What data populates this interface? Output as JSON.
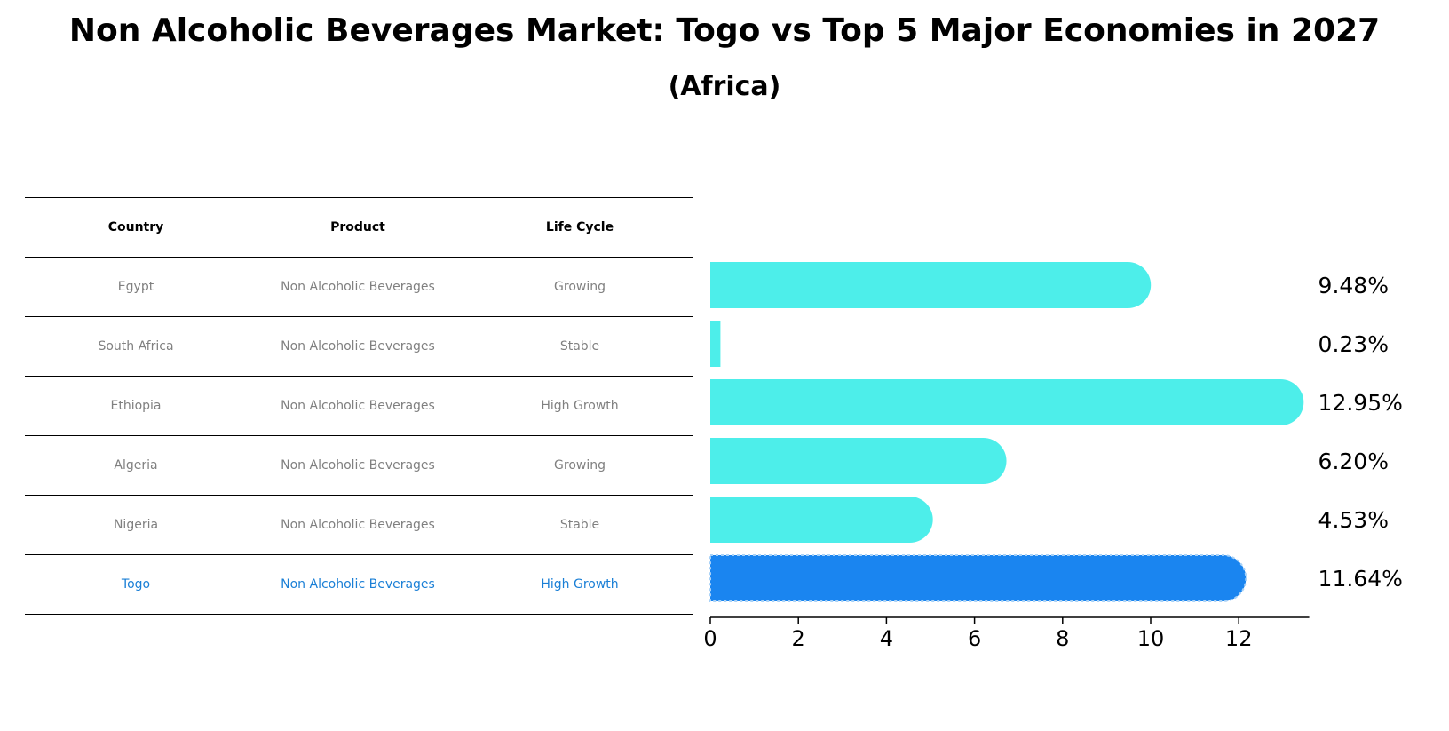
{
  "title": "Non Alcoholic Beverages Market: Togo vs Top 5 Major Economies in 2027",
  "subtitle": "(Africa)",
  "table": {
    "headers": [
      "Country",
      "Product",
      "Life Cycle"
    ],
    "rows": [
      {
        "country": "Egypt",
        "product": "Non Alcoholic Beverages",
        "life_cycle": "Growing"
      },
      {
        "country": "South Africa",
        "product": "Non Alcoholic Beverages",
        "life_cycle": "Stable"
      },
      {
        "country": "Ethiopia",
        "product": "Non Alcoholic Beverages",
        "life_cycle": "High Growth"
      },
      {
        "country": "Algeria",
        "product": "Non Alcoholic Beverages",
        "life_cycle": "Growing"
      },
      {
        "country": "Nigeria",
        "product": "Non Alcoholic Beverages",
        "life_cycle": "Stable"
      },
      {
        "country": "Togo",
        "product": "Non Alcoholic Beverages",
        "life_cycle": "High Growth"
      }
    ]
  },
  "colors": {
    "bar": "#4DEEEA",
    "highlight": "#1A85F0",
    "highlight_text": "#1A7FD6",
    "muted_text": "#808080"
  },
  "chart_data": {
    "type": "bar",
    "orientation": "horizontal",
    "categories": [
      "Egypt",
      "South Africa",
      "Ethiopia",
      "Algeria",
      "Nigeria",
      "Togo"
    ],
    "values": [
      9.48,
      0.23,
      12.95,
      6.2,
      4.53,
      11.64
    ],
    "value_labels": [
      "9.48%",
      "0.23%",
      "12.95%",
      "6.20%",
      "4.53%",
      "11.64%"
    ],
    "highlight_category": "Togo",
    "xticks": [
      0,
      2,
      4,
      6,
      8,
      10,
      12
    ],
    "xlim": [
      0,
      13.6
    ],
    "xlabel": "",
    "ylabel": "",
    "grid": false,
    "legend": false
  }
}
